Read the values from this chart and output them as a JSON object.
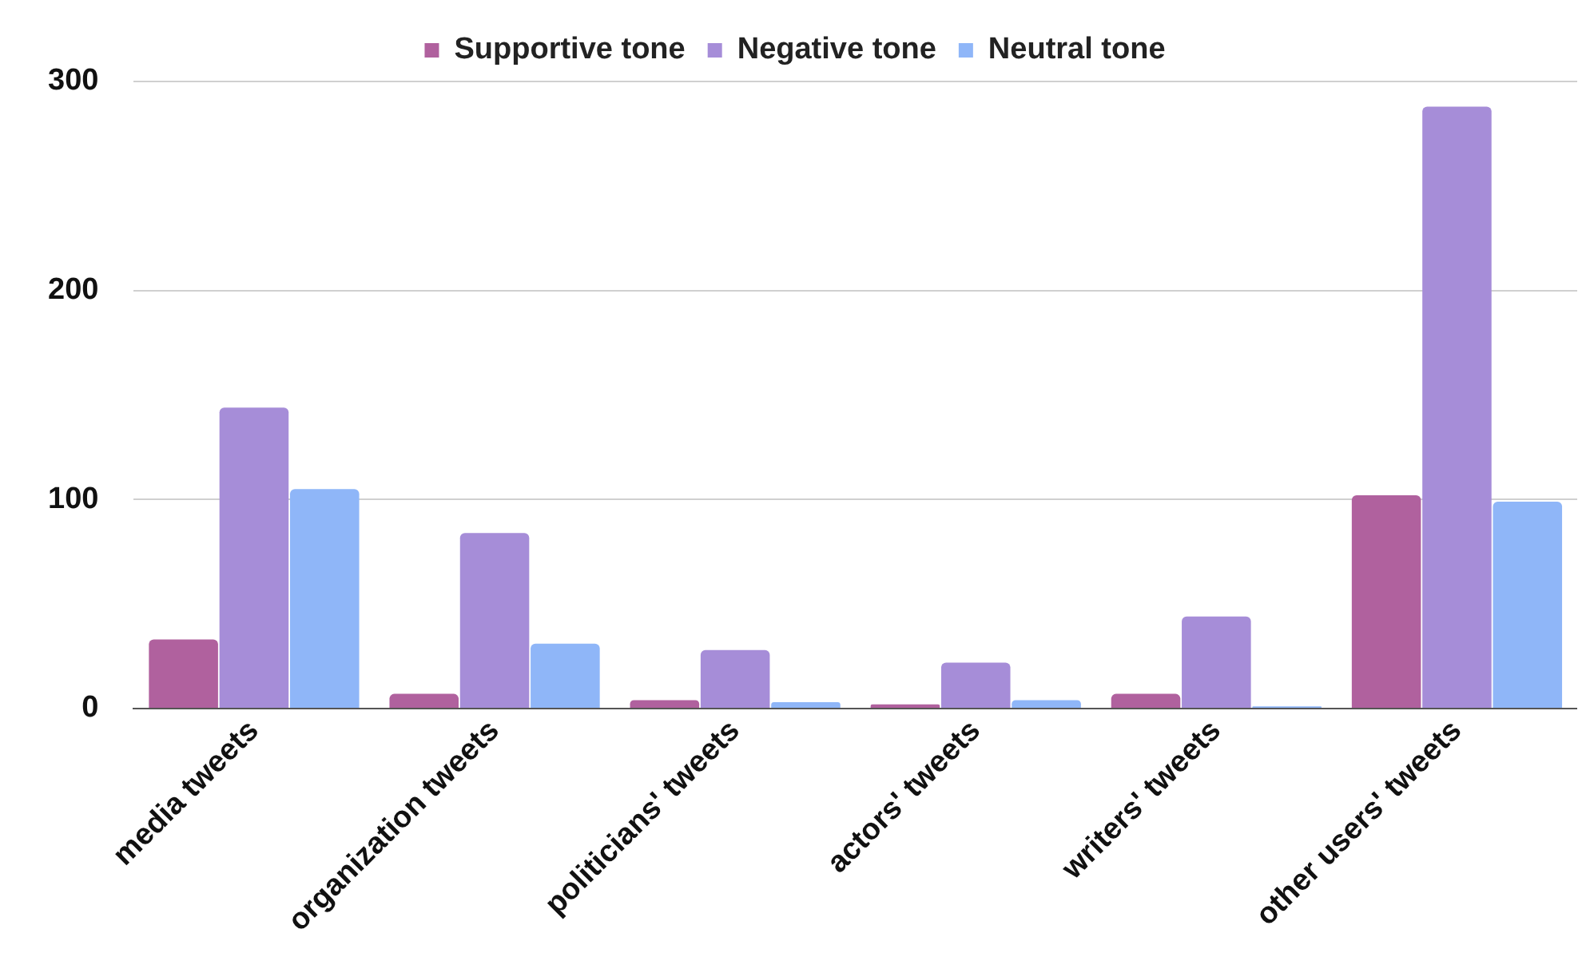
{
  "chart_data": {
    "type": "bar",
    "categories": [
      "media tweets",
      "organization tweets",
      "politicians' tweets",
      "actors' tweets",
      "writers' tweets",
      "other users' tweets"
    ],
    "series": [
      {
        "name": "Supportive tone",
        "color": "#b0619e",
        "values": [
          33,
          7,
          4,
          2,
          7,
          102
        ]
      },
      {
        "name": "Negative tone",
        "color": "#a68dd8",
        "values": [
          144,
          84,
          28,
          22,
          44,
          288
        ]
      },
      {
        "name": "Neutral tone",
        "color": "#8fb6f8",
        "values": [
          105,
          31,
          3,
          4,
          1,
          99
        ]
      }
    ],
    "ylim": [
      0,
      300
    ],
    "yticks": [
      0,
      100,
      200,
      300
    ],
    "grid": "y",
    "legend": "top"
  }
}
